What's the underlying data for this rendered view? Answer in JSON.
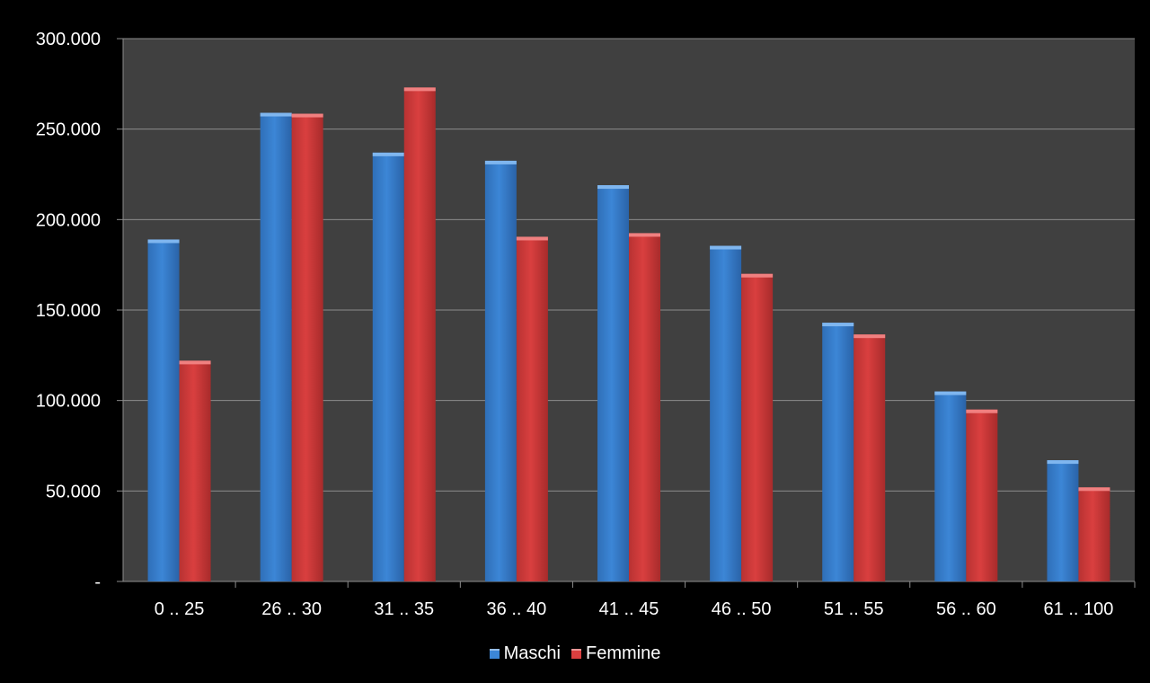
{
  "chart_data": {
    "type": "bar",
    "title": "",
    "xlabel": "",
    "ylabel": "",
    "categories": [
      "0 .. 25",
      "26 .. 30",
      "31 .. 35",
      "36 .. 40",
      "41 .. 45",
      "46 .. 50",
      "51 .. 55",
      "56 .. 60",
      "61 .. 100"
    ],
    "series": [
      {
        "name": "Maschi",
        "color": "#3c86d6",
        "values": [
          189000,
          259000,
          237000,
          232500,
          219000,
          185500,
          143000,
          105000,
          67000
        ]
      },
      {
        "name": "Femmine",
        "color": "#d93f3f",
        "values": [
          122000,
          258500,
          273000,
          190500,
          192500,
          170000,
          136500,
          95000,
          52000
        ]
      }
    ],
    "ylim": [
      0,
      300000
    ],
    "yticks": [
      0,
      50000,
      100000,
      150000,
      200000,
      250000,
      300000
    ],
    "ytick_labels": [
      "-",
      "50.000",
      "100.000",
      "150.000",
      "200.000",
      "250.000",
      "300.000"
    ],
    "grid": true,
    "legend_position": "bottom",
    "plot_background": "#404040"
  }
}
